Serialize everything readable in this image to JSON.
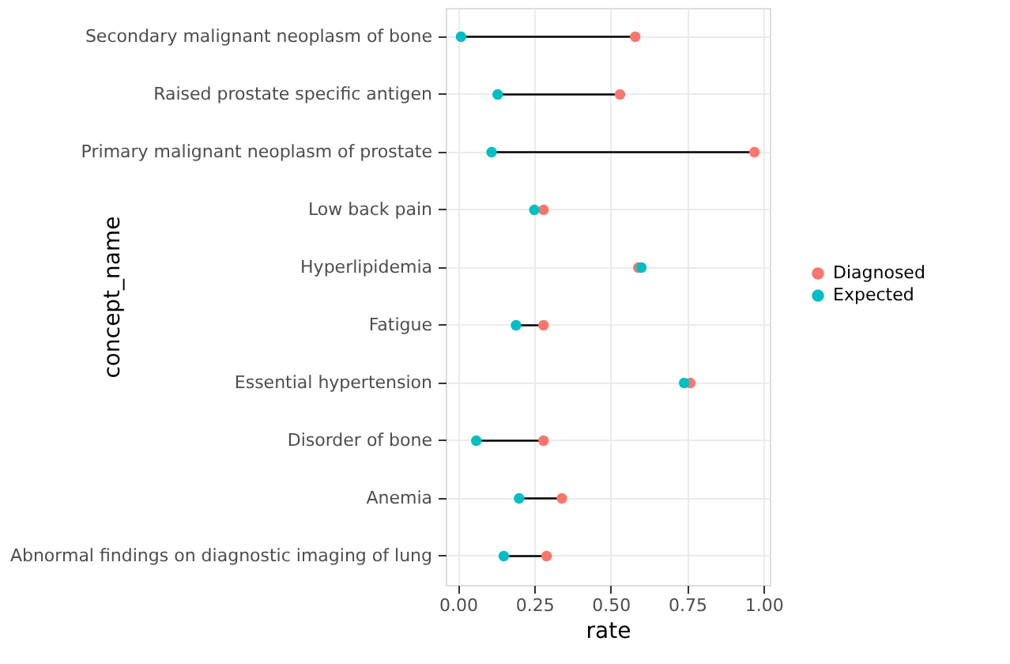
{
  "chart_data": {
    "type": "scatter",
    "orientation": "horizontal",
    "xlabel": "rate",
    "ylabel": "concept_name",
    "categories": [
      "Secondary malignant neoplasm of bone",
      "Raised prostate specific antigen",
      "Primary malignant neoplasm of prostate",
      "Low back pain",
      "Hyperlipidemia",
      "Fatigue",
      "Essential hypertension",
      "Disorder of bone",
      "Anemia",
      "Abnormal findings on diagnostic imaging of lung"
    ],
    "series": [
      {
        "name": "Diagnosed",
        "color": "#f8766d",
        "values": [
          0.58,
          0.53,
          0.97,
          0.28,
          0.59,
          0.28,
          0.76,
          0.28,
          0.34,
          0.29
        ]
      },
      {
        "name": "Expected",
        "color": "#00bfc4",
        "values": [
          0.01,
          0.13,
          0.11,
          0.25,
          0.6,
          0.19,
          0.74,
          0.06,
          0.2,
          0.15
        ]
      }
    ],
    "xlim": [
      -0.04,
      1.02
    ],
    "xticks": [
      {
        "value": 0,
        "label": "0.00"
      },
      0.25,
      {
        "value": 0.5,
        "label": "0.50"
      },
      0.75,
      {
        "value": 1,
        "label": "1.00"
      }
    ],
    "grid": true,
    "legend": "right",
    "marker": "circle"
  }
}
